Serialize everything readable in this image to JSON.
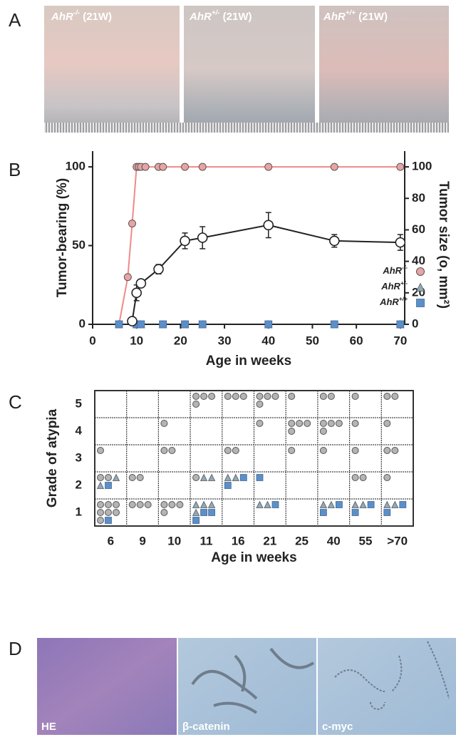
{
  "panel_labels": [
    "A",
    "B",
    "C",
    "D"
  ],
  "photos_a": [
    {
      "caption": "AhR-/- (21W)"
    },
    {
      "caption": "AhR+/- (21W)"
    },
    {
      "caption": "AhR+/+ (21W)"
    }
  ],
  "chart_data": [
    {
      "type": "line",
      "x_label": "Age in weeks",
      "y_label": "Tumor-bearing (%)",
      "y2_label": "Tumor size (o, mm²)",
      "xlim": [
        0,
        71
      ],
      "xticks": [
        0,
        10,
        20,
        30,
        40,
        50,
        60,
        70
      ],
      "ylim": [
        0,
        110
      ],
      "yticks": [
        0,
        50,
        100
      ],
      "y2lim": [
        0,
        110
      ],
      "y2ticks": [
        0,
        20,
        40,
        60,
        80,
        100
      ],
      "legend": "lower right",
      "series": [
        {
          "name": "AhR-/-",
          "marker": "circle",
          "color": "#e8a3a3",
          "line_color": "#f08a8a",
          "line": true,
          "x": [
            6,
            8,
            9,
            10,
            10.5,
            11,
            12,
            15,
            16,
            21,
            25,
            40,
            55,
            70
          ],
          "values": [
            0,
            30,
            64,
            100,
            100,
            100,
            100,
            100,
            100,
            100,
            100,
            100,
            100,
            100
          ]
        },
        {
          "name": "AhR+/-",
          "marker": "triangle",
          "color": "#8fa9b8",
          "line": false,
          "x": [
            6,
            10,
            11,
            16,
            21,
            25,
            40,
            55,
            70
          ],
          "values": [
            0,
            0,
            0,
            0,
            0,
            0,
            0,
            0,
            0
          ]
        },
        {
          "name": "AhR+/+",
          "marker": "square",
          "color": "#5b8fca",
          "line": false,
          "x": [
            6,
            10,
            11,
            16,
            21,
            25,
            40,
            55,
            70
          ],
          "values": [
            0,
            0,
            0,
            0,
            0,
            0,
            0,
            0,
            0
          ]
        },
        {
          "marker": "open-circle",
          "color": "#222222",
          "line_color": "#222222",
          "line": true,
          "axis": "y2",
          "x": [
            9,
            10,
            11,
            15,
            21,
            25,
            40,
            55,
            70
          ],
          "values": [
            2,
            20,
            26,
            35,
            53,
            55,
            63,
            53,
            52
          ],
          "errors": [
            0,
            5,
            2,
            3,
            5,
            7,
            8,
            4,
            5
          ]
        }
      ]
    },
    {
      "type": "symbol-grid",
      "x_label": "Age in weeks",
      "y_label": "Grade of atypia",
      "categories": [
        "6",
        "9",
        "10",
        "11",
        "16",
        "21",
        "25",
        "40",
        "55",
        ">70"
      ],
      "ylim": [
        0.5,
        5.5
      ],
      "yticks": [
        1,
        2,
        3,
        4,
        5
      ],
      "series": [
        {
          "marker": "circle",
          "color": "#b4b4b4",
          "values": [
            [
              7,
              2,
              1,
              0,
              0
            ],
            [
              3,
              2,
              0,
              0,
              0
            ],
            [
              4,
              0,
              2,
              1,
              0
            ],
            [
              0,
              1,
              0,
              0,
              4
            ],
            [
              0,
              0,
              2,
              0,
              3
            ],
            [
              0,
              0,
              0,
              1,
              4
            ],
            [
              0,
              0,
              1,
              4,
              1
            ],
            [
              0,
              0,
              1,
              4,
              2
            ],
            [
              0,
              2,
              1,
              1,
              1
            ],
            [
              0,
              1,
              2,
              1,
              2
            ]
          ]
        },
        {
          "marker": "triangle",
          "color": "#8fa9b8",
          "values": [
            [
              0,
              2,
              0,
              0,
              0
            ],
            [
              0,
              0,
              0,
              0,
              0
            ],
            [
              0,
              0,
              0,
              0,
              0
            ],
            [
              4,
              2,
              0,
              0,
              0
            ],
            [
              0,
              2,
              0,
              0,
              0
            ],
            [
              2,
              0,
              0,
              0,
              0
            ],
            [
              0,
              0,
              0,
              0,
              0
            ],
            [
              2,
              0,
              0,
              0,
              0
            ],
            [
              2,
              0,
              0,
              0,
              0
            ],
            [
              2,
              0,
              0,
              0,
              0
            ]
          ]
        },
        {
          "marker": "square",
          "color": "#5b8fca",
          "values": [
            [
              1,
              1,
              0,
              0,
              0
            ],
            [
              0,
              0,
              0,
              0,
              0
            ],
            [
              0,
              0,
              0,
              0,
              0
            ],
            [
              3,
              0,
              0,
              0,
              0
            ],
            [
              0,
              2,
              0,
              0,
              0
            ],
            [
              1,
              1,
              0,
              0,
              0
            ],
            [
              0,
              0,
              0,
              0,
              0
            ],
            [
              2,
              0,
              0,
              0,
              0
            ],
            [
              2,
              0,
              0,
              0,
              0
            ],
            [
              2,
              0,
              0,
              0,
              0
            ]
          ]
        }
      ]
    }
  ],
  "photos_d": [
    {
      "caption": "HE"
    },
    {
      "caption": "β-catenin"
    },
    {
      "caption": "c-myc"
    }
  ]
}
